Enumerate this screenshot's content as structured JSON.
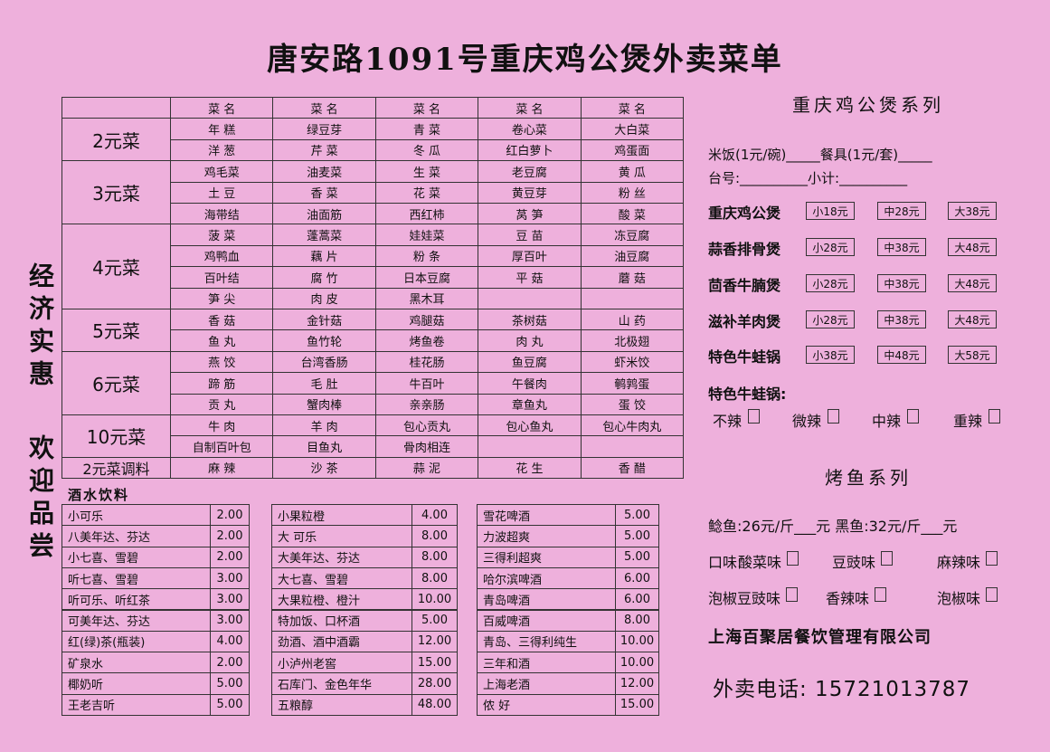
{
  "title": "唐安路1091号重庆鸡公煲外卖菜单",
  "slogans": [
    "经济实惠",
    "欢迎品尝"
  ],
  "menu": {
    "header": "菜 名",
    "groups": [
      {
        "label": "2元菜",
        "rows": [
          [
            "年 糕",
            "绿豆芽",
            "青 菜",
            "卷心菜",
            "大白菜"
          ],
          [
            "洋 葱",
            "芹 菜",
            "冬 瓜",
            "红白萝卜",
            "鸡蛋面"
          ]
        ]
      },
      {
        "label": "3元菜",
        "rows": [
          [
            "鸡毛菜",
            "油麦菜",
            "生 菜",
            "老豆腐",
            "黄 瓜"
          ],
          [
            "土 豆",
            "香 菜",
            "花 菜",
            "黄豆芽",
            "粉 丝"
          ],
          [
            "海带结",
            "油面筋",
            "西红柿",
            "莴 笋",
            "酸 菜"
          ]
        ]
      },
      {
        "label": "4元菜",
        "rows": [
          [
            "菠 菜",
            "蓬蒿菜",
            "娃娃菜",
            "豆 苗",
            "冻豆腐"
          ],
          [
            "鸡鸭血",
            "藕 片",
            "粉 条",
            "厚百叶",
            "油豆腐"
          ],
          [
            "百叶结",
            "腐 竹",
            "日本豆腐",
            "平 菇",
            "蘑 菇"
          ],
          [
            "笋 尖",
            "肉 皮",
            "黑木耳"
          ]
        ]
      },
      {
        "label": "5元菜",
        "rows": [
          [
            "香 菇",
            "金针菇",
            "鸡腿菇",
            "茶树菇",
            "山 药"
          ],
          [
            "鱼 丸",
            "鱼竹轮",
            "烤鱼卷",
            "肉 丸",
            "北极翅"
          ]
        ]
      },
      {
        "label": "6元菜",
        "rows": [
          [
            "燕 饺",
            "台湾香肠",
            "桂花肠",
            "鱼豆腐",
            "虾米饺"
          ],
          [
            "蹄 筋",
            "毛 肚",
            "牛百叶",
            "午餐肉",
            "鹌鹑蛋"
          ],
          [
            "贡 丸",
            "蟹肉棒",
            "亲亲肠",
            "章鱼丸",
            "蛋 饺"
          ]
        ]
      },
      {
        "label": "10元菜",
        "rows": [
          [
            "牛 肉",
            "羊 肉",
            "包心贡丸",
            "包心鱼丸",
            "包心牛肉丸"
          ],
          [
            "自制百叶包",
            "目鱼丸",
            "骨肉相连"
          ]
        ]
      },
      {
        "label": "2元菜调料",
        "rows": [
          [
            "麻 辣",
            "沙 茶",
            "蒜 泥",
            "花 生",
            "香 醋"
          ]
        ]
      }
    ]
  },
  "drinks": {
    "title": "酒水饮料",
    "columns": [
      [
        [
          "小可乐",
          "2.00"
        ],
        [
          "八美年达、芬达",
          "2.00"
        ],
        [
          "小七喜、雪碧",
          "2.00"
        ],
        [
          "听七喜、雪碧",
          "3.00"
        ],
        [
          "听可乐、听红茶",
          "3.00"
        ],
        [
          "可美年达、芬达",
          "3.00"
        ],
        [
          "红(绿)茶(瓶装)",
          "4.00"
        ],
        [
          "矿泉水",
          "2.00"
        ],
        [
          "椰奶听",
          "5.00"
        ],
        [
          "王老吉听",
          "5.00"
        ]
      ],
      [
        [
          "小果粒橙",
          "4.00"
        ],
        [
          "大 可乐",
          "8.00"
        ],
        [
          "大美年达、芬达",
          "8.00"
        ],
        [
          "大七喜、雪碧",
          "8.00"
        ],
        [
          "大果粒橙、橙汁",
          "10.00"
        ],
        [
          "特加饭、口杯酒",
          "5.00"
        ],
        [
          "劲酒、酒中酒霸",
          "12.00"
        ],
        [
          "小泸州老窖",
          "15.00"
        ],
        [
          "石库门、金色年华",
          "28.00"
        ],
        [
          "五粮醇",
          "48.00"
        ]
      ],
      [
        [
          "雪花啤酒",
          "5.00"
        ],
        [
          "力波超爽",
          "5.00"
        ],
        [
          "三得利超爽",
          "5.00"
        ],
        [
          "哈尔滨啤酒",
          "6.00"
        ],
        [
          "青岛啤酒",
          "6.00"
        ],
        [
          "百威啤酒",
          "8.00"
        ],
        [
          "青岛、三得利纯生",
          "10.00"
        ],
        [
          "三年和酒",
          "10.00"
        ],
        [
          "上海老酒",
          "12.00"
        ],
        [
          "侬 好",
          "15.00"
        ]
      ]
    ]
  },
  "pots": {
    "title": "重庆鸡公煲系列",
    "order_lines": [
      "米饭(1元/碗)_____餐具(1元/套)_____",
      "台号:__________小计:__________"
    ],
    "items": [
      {
        "name": "重庆鸡公煲",
        "sizes": [
          "小18元",
          "中28元",
          "大38元"
        ]
      },
      {
        "name": "蒜香排骨煲",
        "sizes": [
          "小28元",
          "中38元",
          "大48元"
        ]
      },
      {
        "name": "茴香牛腩煲",
        "sizes": [
          "小28元",
          "中38元",
          "大48元"
        ]
      },
      {
        "name": "滋补羊肉煲",
        "sizes": [
          "小28元",
          "中38元",
          "大48元"
        ]
      },
      {
        "name": "特色牛蛙锅",
        "sizes": [
          "小38元",
          "中48元",
          "大58元"
        ]
      }
    ],
    "frog": {
      "label": "特色牛蛙锅:",
      "options": [
        "不辣",
        "微辣",
        "中辣",
        "重辣"
      ]
    }
  },
  "fish": {
    "title": "烤鱼系列",
    "price_line": "鲶鱼:26元/斤___元  黑鱼:32元/斤___元",
    "taste_label": "口味:",
    "tastes": [
      [
        "酸菜味",
        "豆豉味",
        "麻辣味"
      ],
      [
        "泡椒豆豉味",
        "香辣味",
        "泡椒味"
      ]
    ]
  },
  "company": "上海百聚居餐饮管理有限公司",
  "phone": "外卖电话: 15721013787"
}
